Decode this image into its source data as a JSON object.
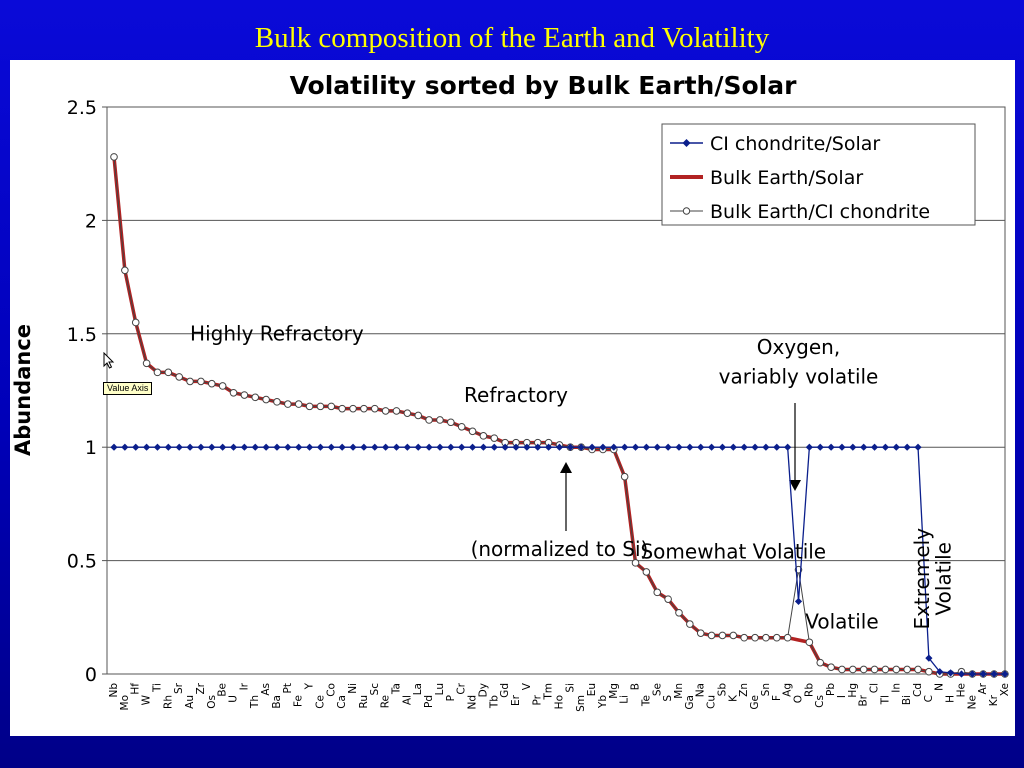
{
  "slide": {
    "title": "Bulk composition of the Earth and Volatility",
    "tooltip": "Value Axis"
  },
  "colors": {
    "slide_background": "#0000c8",
    "slide_title": "#ffff00",
    "ci_series": "#0b1f8c",
    "bulk_earth_solar": "#b22222",
    "bulk_earth_ci": "#444444"
  },
  "chart_data": {
    "type": "line",
    "title": "Volatility sorted by Bulk Earth/Solar",
    "ylabel": "Abundance",
    "xlabel": "",
    "ylim": [
      0,
      2.5
    ],
    "yticks": [
      "0",
      "0.5",
      "1",
      "1.5",
      "2",
      "2.5"
    ],
    "grid": "horizontal",
    "legend_position": "top-right",
    "categories": [
      "Nb",
      "Mo",
      "Hf",
      "W",
      "Ti",
      "Rh",
      "Sr",
      "Au",
      "Zr",
      "Os",
      "Be",
      "U",
      "Ir",
      "Th",
      "As",
      "Ba",
      "Pt",
      "Fe",
      "Y",
      "Ce",
      "Co",
      "Ca",
      "Ni",
      "Ru",
      "Sc",
      "Re",
      "Ta",
      "Al",
      "La",
      "Pd",
      "Lu",
      "P",
      "Cr",
      "Nd",
      "Dy",
      "Tb",
      "Gd",
      "Er",
      "V",
      "Pr",
      "Tm",
      "Ho",
      "Si",
      "Sm",
      "Eu",
      "Yb",
      "Mg",
      "Li",
      "B",
      "Te",
      "Se",
      "S",
      "Mn",
      "Ga",
      "Na",
      "Cu",
      "Sb",
      "K",
      "Zn",
      "Ge",
      "Sn",
      "F",
      "Ag",
      "O",
      "Rb",
      "Cs",
      "Pb",
      "I",
      "Hg",
      "Br",
      "Cl",
      "Tl",
      "In",
      "Bi",
      "Cd",
      "C",
      "N",
      "H",
      "He",
      "Ne",
      "Ar",
      "Kr",
      "Xe"
    ],
    "series": [
      {
        "name": "CI chondrite/Solar",
        "marker": "diamond",
        "values": [
          1,
          1,
          1,
          1,
          1,
          1,
          1,
          1,
          1,
          1,
          1,
          1,
          1,
          1,
          1,
          1,
          1,
          1,
          1,
          1,
          1,
          1,
          1,
          1,
          1,
          1,
          1,
          1,
          1,
          1,
          1,
          1,
          1,
          1,
          1,
          1,
          1,
          1,
          1,
          1,
          1,
          1,
          1,
          1,
          1,
          1,
          1,
          1,
          1,
          1,
          1,
          1,
          1,
          1,
          1,
          1,
          1,
          1,
          1,
          1,
          1,
          1,
          1,
          0.32,
          1,
          1,
          1,
          1,
          1,
          1,
          1,
          1,
          1,
          1,
          1,
          0.07,
          0.01,
          0.005,
          0,
          0,
          0,
          0,
          0
        ]
      },
      {
        "name": "Bulk Earth/Solar",
        "marker": "none",
        "values": [
          2.28,
          1.78,
          1.55,
          1.37,
          1.33,
          1.33,
          1.31,
          1.29,
          1.29,
          1.28,
          1.27,
          1.24,
          1.23,
          1.22,
          1.21,
          1.2,
          1.19,
          1.19,
          1.18,
          1.18,
          1.18,
          1.17,
          1.17,
          1.17,
          1.17,
          1.16,
          1.16,
          1.15,
          1.14,
          1.12,
          1.12,
          1.11,
          1.09,
          1.07,
          1.05,
          1.04,
          1.02,
          1.02,
          1.02,
          1.02,
          1.02,
          1.01,
          1.0,
          1.0,
          0.99,
          0.99,
          0.99,
          0.87,
          0.49,
          0.45,
          0.36,
          0.33,
          0.27,
          0.22,
          0.18,
          0.17,
          0.17,
          0.17,
          0.16,
          0.16,
          0.16,
          0.16,
          0.16,
          0.15,
          0.14,
          0.05,
          0.03,
          0.02,
          0.02,
          0.02,
          0.02,
          0.02,
          0.02,
          0.02,
          0.02,
          0.01,
          0.0,
          0.0,
          0.0,
          0.0,
          0.0,
          0.0,
          0.0
        ]
      },
      {
        "name": "Bulk Earth/CI chondrite",
        "marker": "circle",
        "values": [
          2.28,
          1.78,
          1.55,
          1.37,
          1.33,
          1.33,
          1.31,
          1.29,
          1.29,
          1.28,
          1.27,
          1.24,
          1.23,
          1.22,
          1.21,
          1.2,
          1.19,
          1.19,
          1.18,
          1.18,
          1.18,
          1.17,
          1.17,
          1.17,
          1.17,
          1.16,
          1.16,
          1.15,
          1.14,
          1.12,
          1.12,
          1.11,
          1.09,
          1.07,
          1.05,
          1.04,
          1.02,
          1.02,
          1.02,
          1.02,
          1.02,
          1.01,
          1.0,
          1.0,
          0.99,
          0.99,
          0.99,
          0.87,
          0.49,
          0.45,
          0.36,
          0.33,
          0.27,
          0.22,
          0.18,
          0.17,
          0.17,
          0.17,
          0.16,
          0.16,
          0.16,
          0.16,
          0.16,
          0.46,
          0.14,
          0.05,
          0.03,
          0.02,
          0.02,
          0.02,
          0.02,
          0.02,
          0.02,
          0.02,
          0.02,
          0.01,
          0.0,
          0.0,
          0.01,
          0.0,
          0.0,
          0.0,
          0.0
        ]
      }
    ],
    "annotations": [
      {
        "key": "highly_refractory",
        "text": "Highly Refractory",
        "x": "Au",
        "y": 1.47
      },
      {
        "key": "refractory",
        "text": "Refractory",
        "x": "Er",
        "y": 1.2
      },
      {
        "key": "oxygen",
        "text": "Oxygen,",
        "x": "O",
        "y": 1.41
      },
      {
        "key": "oxygen2",
        "text": "variably volatile",
        "x": "O",
        "y": 1.28
      },
      {
        "key": "normalized",
        "text": "(normalized to Si)",
        "x": "Ho",
        "y": 0.52
      },
      {
        "key": "somewhat_volatile",
        "text": "Somewhat Volatile",
        "x": "K",
        "y": 0.51
      },
      {
        "key": "volatile",
        "text": "Volatile",
        "x": "I",
        "y": 0.2
      },
      {
        "key": "extremely",
        "text": "Extremely",
        "x": "C",
        "y": 0.42
      },
      {
        "key": "extremely2",
        "text": "Volatile",
        "x": "H",
        "y": 0.42
      }
    ]
  }
}
